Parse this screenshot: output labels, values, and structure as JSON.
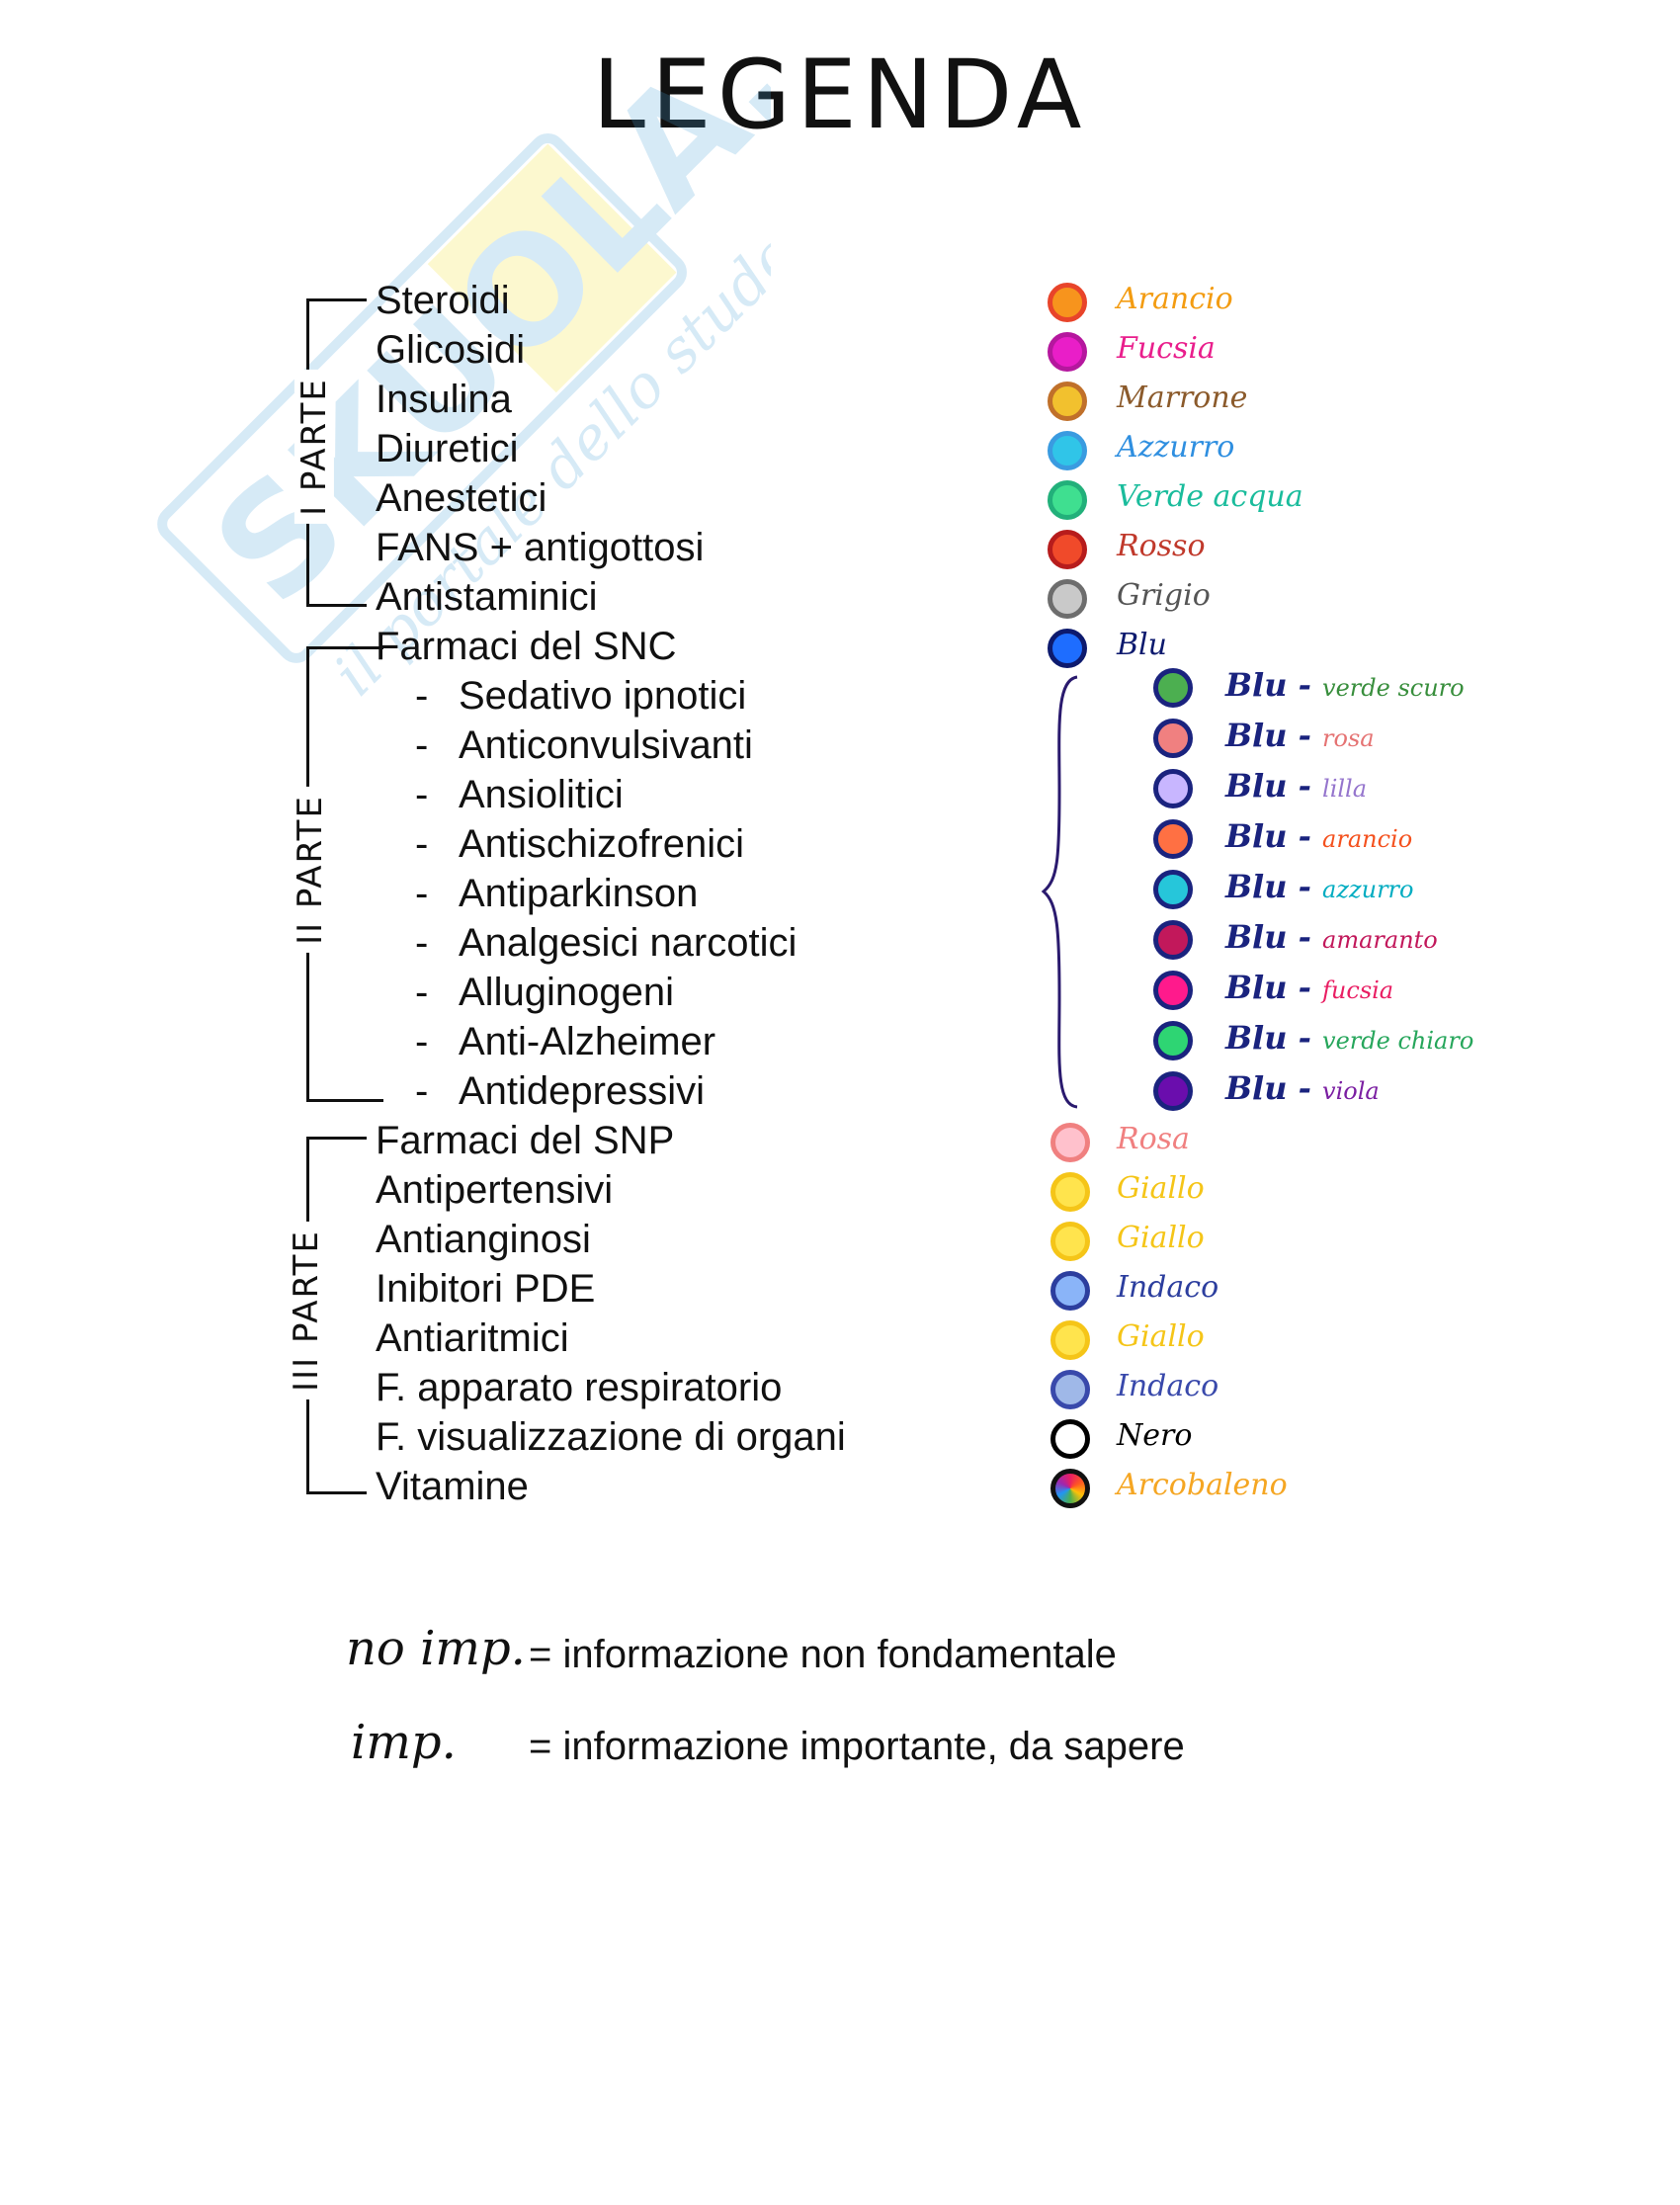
{
  "title": "LEGENDA",
  "watermark": {
    "brand": "SKUOLA.net",
    "tagline": "il portale dello studente"
  },
  "parts": [
    {
      "label": "I PARTE"
    },
    {
      "label": "II PARTE"
    },
    {
      "label": "III PARTE"
    }
  ],
  "items": [
    {
      "text": "Steroidi"
    },
    {
      "text": "Glicosidi"
    },
    {
      "text": "Insulina"
    },
    {
      "text": "Diuretici"
    },
    {
      "text": "Anestetici"
    },
    {
      "text": "FANS + antigottosi"
    },
    {
      "text": "Antistaminici"
    },
    {
      "text": "Farmaci del SNC"
    },
    {
      "text": "Sedativo ipnotici"
    },
    {
      "text": "Anticonvulsivanti"
    },
    {
      "text": "Ansiolitici"
    },
    {
      "text": "Antischizofrenici"
    },
    {
      "text": "Antiparkinson"
    },
    {
      "text": "Analgesici narcotici"
    },
    {
      "text": "Alluginogeni"
    },
    {
      "text": "Anti-Alzheimer"
    },
    {
      "text": "Antidepressivi"
    },
    {
      "text": "Farmaci del SNP"
    },
    {
      "text": "Antipertensivi"
    },
    {
      "text": "Antianginosi"
    },
    {
      "text": "Inibitori PDE"
    },
    {
      "text": "Antiaritmici"
    },
    {
      "text": "F. apparato respiratorio"
    },
    {
      "text": "F. visualizzazione di organi"
    },
    {
      "text": "Vitamine"
    }
  ],
  "dash": "-",
  "colors_main": [
    {
      "name": "Arancio",
      "fill": "#f7941d",
      "ring": "#e8442a",
      "text_color": "#f39c12"
    },
    {
      "name": "Fucsia",
      "fill": "#e91ec8",
      "ring": "#b5179e",
      "text_color": "#e91e8c"
    },
    {
      "name": "Marrone",
      "fill": "#f2c12e",
      "ring": "#c0702a",
      "text_color": "#8b5a2b"
    },
    {
      "name": "Azzurro",
      "fill": "#30c5e8",
      "ring": "#3a9be0",
      "text_color": "#2f8fe0"
    },
    {
      "name": "Verde acqua",
      "fill": "#3fdf90",
      "ring": "#22b07a",
      "text_color": "#1abc9c"
    },
    {
      "name": "Rosso",
      "fill": "#f04a2a",
      "ring": "#b71c1c",
      "text_color": "#c0392b"
    },
    {
      "name": "Grigio",
      "fill": "#c9c9c9",
      "ring": "#6d6d6d",
      "text_color": "#555555"
    },
    {
      "name": "Blu",
      "fill": "#1e6dff",
      "ring": "#0d1a6e",
      "text_color": "#0d1a6e"
    }
  ],
  "colors_sub": [
    {
      "prefix": "Blu -",
      "suffix": "verde scuro",
      "fill": "#4caf50",
      "text_color": "#388e3c"
    },
    {
      "prefix": "Blu -",
      "suffix": "rosa",
      "fill": "#f08080",
      "text_color": "#e57373"
    },
    {
      "prefix": "Blu -",
      "suffix": "lilla",
      "fill": "#c8b6ff",
      "text_color": "#9575cd"
    },
    {
      "prefix": "Blu -",
      "suffix": "arancio",
      "fill": "#ff7043",
      "text_color": "#f4511e"
    },
    {
      "prefix": "Blu -",
      "suffix": "azzurro",
      "fill": "#26c6da",
      "text_color": "#00acc1"
    },
    {
      "prefix": "Blu -",
      "suffix": "amaranto",
      "fill": "#c2185b",
      "text_color": "#c2185b"
    },
    {
      "prefix": "Blu -",
      "suffix": "fucsia",
      "fill": "#ff1a8c",
      "text_color": "#e91e63"
    },
    {
      "prefix": "Blu -",
      "suffix": "verde chiaro",
      "fill": "#2ed573",
      "text_color": "#26a65b"
    },
    {
      "prefix": "Blu -",
      "suffix": "viola",
      "fill": "#6a0dad",
      "text_color": "#7b1fa2"
    }
  ],
  "sub_ring": "#1a237e",
  "colors_third": [
    {
      "name": "Rosa",
      "fill": "#ffc1cc",
      "ring": "#f08080",
      "text_color": "#f08080"
    },
    {
      "name": "Giallo",
      "fill": "#ffe44d",
      "ring": "#f5c518",
      "text_color": "#f5c518"
    },
    {
      "name": "Giallo",
      "fill": "#ffe44d",
      "ring": "#f5c518",
      "text_color": "#f5c518"
    },
    {
      "name": "Indaco",
      "fill": "#8ab4f8",
      "ring": "#2c3e9e",
      "text_color": "#2c3e9e"
    },
    {
      "name": "Giallo",
      "fill": "#ffe44d",
      "ring": "#f5c518",
      "text_color": "#f5c518"
    },
    {
      "name": "Indaco",
      "fill": "#9fb8e8",
      "ring": "#3949ab",
      "text_color": "#3949ab"
    },
    {
      "name": "Nero",
      "fill": "#ffffff",
      "ring": "#000000",
      "text_color": "#000000"
    },
    {
      "name": "Arcobaleno",
      "fill": "#e91e63",
      "ring": "#111111",
      "text_color": "#f5a623"
    }
  ],
  "notes": [
    {
      "key": "no imp.",
      "text": "= informazione non fondamentale"
    },
    {
      "key": "imp.",
      "text": "= informazione importante, da sapere"
    }
  ]
}
